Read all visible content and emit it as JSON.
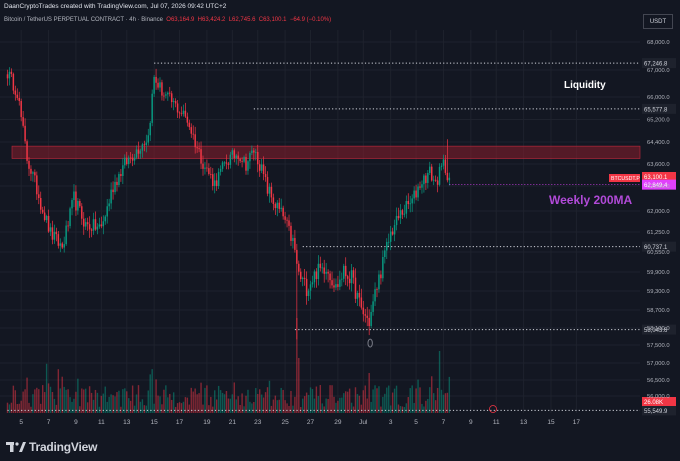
{
  "header": {
    "credit": "DaanCryptoTrades created with TradingView.com, Jul 07, 2026 09:42 UTC+2"
  },
  "symbol_line": {
    "name": "Bitcoin / TetherUS PERPETUAL CONTRACT · 4h · Binance",
    "O": "O63,164.9",
    "H": "H63,424.2",
    "L": "L62,745.6",
    "C": "C63,100.1",
    "change": "−64.9 (−0.10%)"
  },
  "currency_label": "USDT",
  "footer": {
    "brand": "TradingView"
  },
  "colors": {
    "background": "#131722",
    "up": "#089981",
    "down": "#f23645",
    "zone": "#8b1e2c",
    "ma": "#e040fb",
    "grid": "#1e222d"
  },
  "chart_data": {
    "type": "candlestick",
    "y_ticks": [
      "68,000.0",
      "67,000.0",
      "66,000.0",
      "65,200.0",
      "64,400.0",
      "63,600.0",
      "62,800.0",
      "62,000.0",
      "61,250.0",
      "60,550.0",
      "59,900.0",
      "59,300.0",
      "58,700.0",
      "58,100.0",
      "57,500.0",
      "57,000.0",
      "56,500.0",
      "56,000.0"
    ],
    "x_ticks": [
      "5",
      "7",
      "9",
      "11",
      "13",
      "15",
      "17",
      "19",
      "21",
      "23",
      "25",
      "27",
      "29",
      "Jul",
      "3",
      "5",
      "7",
      "9",
      "11",
      "13",
      "15",
      "17"
    ],
    "x_tick_index": [
      7,
      21,
      35,
      48,
      61,
      75,
      88,
      102,
      115,
      128,
      142,
      155,
      169,
      182,
      196,
      209,
      223,
      237,
      250,
      264,
      278,
      291
    ],
    "levels": [
      {
        "label": "67,246.8",
        "value": 67246.8,
        "from_index": 75
      },
      {
        "label": "65,577.8",
        "value": 65577.8,
        "from_index": 126
      },
      {
        "label": "60,737.1",
        "value": 60737.1,
        "from_index": 151
      },
      {
        "label": "58,043.6",
        "value": 58043.6,
        "from_index": 147
      },
      {
        "label": "55,549.9",
        "value": 55549.9,
        "from_index": 0
      }
    ],
    "resistance_zone": [
      63800,
      64250
    ],
    "annotations": {
      "liquidity": "Liquidity",
      "ma": "Weekly 200MA"
    },
    "price_labels": {
      "symbol": "BTCUSDT.P",
      "price": "63,100.1",
      "countdown": "17:17",
      "ma_value": "62,849.4",
      "ma": 62849.4,
      "volume": "26.08K"
    },
    "anchors": [
      [
        0,
        66900
      ],
      [
        5,
        66200
      ],
      [
        10,
        63800
      ],
      [
        16,
        62500
      ],
      [
        22,
        61200
      ],
      [
        28,
        60700
      ],
      [
        34,
        62400
      ],
      [
        40,
        61500
      ],
      [
        48,
        61400
      ],
      [
        54,
        62800
      ],
      [
        60,
        63600
      ],
      [
        66,
        64100
      ],
      [
        72,
        64600
      ],
      [
        75,
        66700
      ],
      [
        80,
        66100
      ],
      [
        87,
        65600
      ],
      [
        92,
        65200
      ],
      [
        97,
        64200
      ],
      [
        101,
        63500
      ],
      [
        106,
        62900
      ],
      [
        112,
        63700
      ],
      [
        118,
        64000
      ],
      [
        122,
        63600
      ],
      [
        126,
        64100
      ],
      [
        129,
        63600
      ],
      [
        133,
        62700
      ],
      [
        137,
        62200
      ],
      [
        141,
        61800
      ],
      [
        146,
        60900
      ],
      [
        149,
        59800
      ],
      [
        153,
        59400
      ],
      [
        158,
        59900
      ],
      [
        163,
        60100
      ],
      [
        168,
        59400
      ],
      [
        172,
        59900
      ],
      [
        176,
        59700
      ],
      [
        181,
        58700
      ],
      [
        185,
        58300
      ],
      [
        188,
        59200
      ],
      [
        192,
        60200
      ],
      [
        196,
        61200
      ],
      [
        201,
        61900
      ],
      [
        207,
        62300
      ],
      [
        211,
        62900
      ],
      [
        216,
        63300
      ],
      [
        219,
        62900
      ],
      [
        223,
        63600
      ],
      [
        226,
        63100
      ]
    ],
    "events": [
      {
        "i": 148,
        "v": 59000,
        "low": 57700
      },
      {
        "i": 185,
        "v": 58300,
        "low": 57850
      },
      {
        "i": 225,
        "v": 63600,
        "high": 64500
      }
    ]
  }
}
